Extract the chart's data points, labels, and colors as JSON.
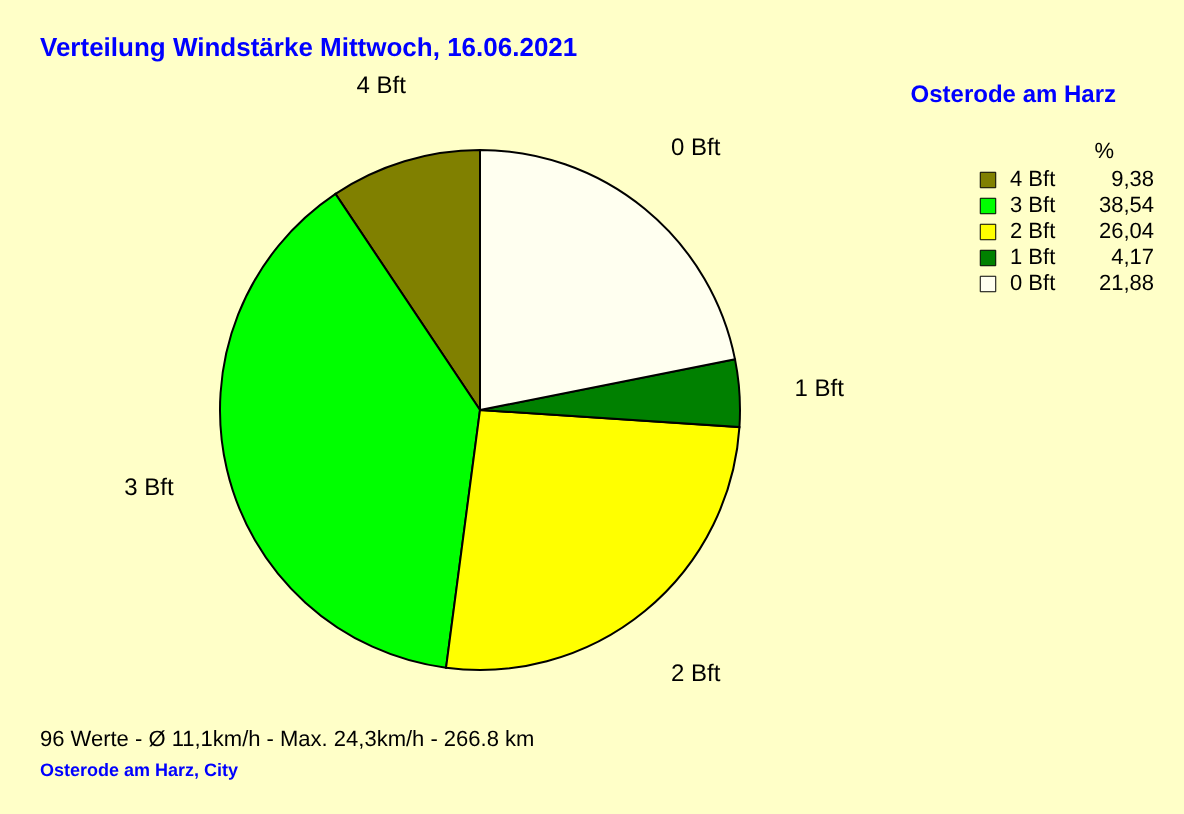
{
  "chart_data": {
    "type": "pie",
    "title": "Verteilung Windstärke  Mittwoch, 16.06.2021",
    "subtitle": "Osterode am Harz",
    "legend_title": "%",
    "legend": "top right",
    "categories": [
      "4 Bft",
      "3 Bft",
      "2 Bft",
      "1 Bft",
      "0 Bft"
    ],
    "values": [
      9.38,
      38.54,
      26.04,
      4.17,
      21.88
    ],
    "value_labels": [
      "9,38",
      "38,54",
      "26,04",
      "4,17",
      "21,88"
    ],
    "colors": [
      "#808000",
      "#00ff00",
      "#ffff00",
      "#008000",
      "#fffff0"
    ],
    "annotations": [
      "96 Werte   -   Ø 11,1km/h  -  Max. 24,3km/h   -   266.8 km",
      "Osterode am Harz, City"
    ]
  }
}
